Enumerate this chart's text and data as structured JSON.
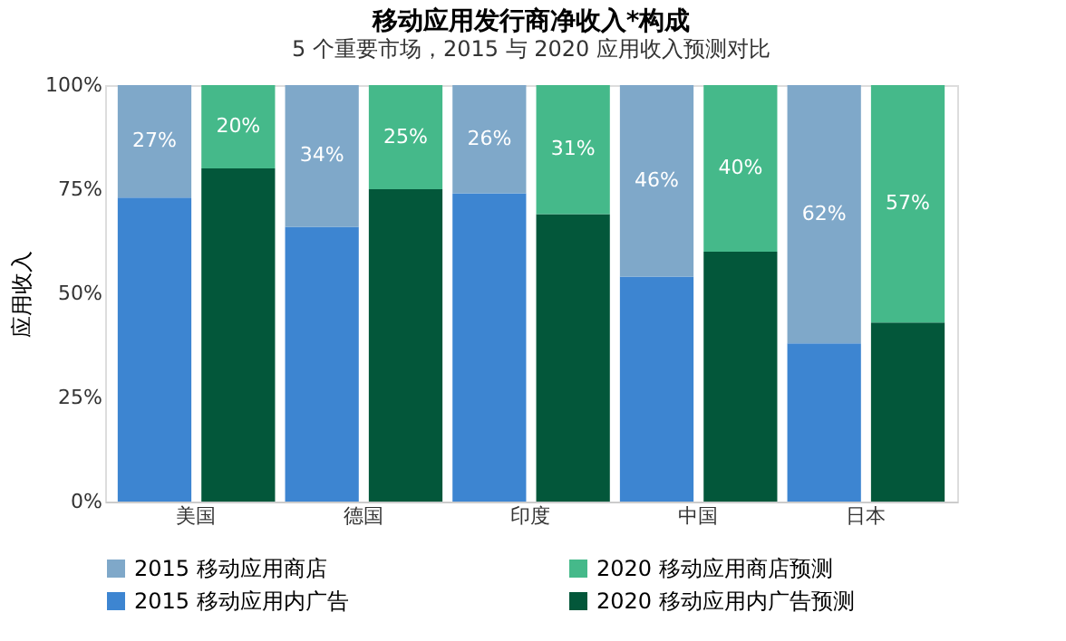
{
  "chart_data": {
    "type": "bar",
    "title": "移动应用发行商净收入*构成",
    "subtitle": "5 个重要市场，2015 与 2020 应用收入预测对比",
    "ylabel": "应用收入",
    "categories": [
      "美国",
      null,
      "德国",
      null,
      "印度",
      null,
      "中国",
      null,
      "日本",
      null
    ],
    "stacked": true,
    "legend": "bottom",
    "grid": false,
    "ylim": [
      0,
      100
    ],
    "yticks": [
      {
        "value": 0,
        "label": "0%"
      },
      {
        "value": 25,
        "label": "25%"
      },
      {
        "value": 50,
        "label": "50%"
      },
      {
        "value": 75,
        "label": "75%"
      },
      {
        "value": 100,
        "label": "100%"
      }
    ],
    "series": [
      {
        "name": "2015 移动应用内广告",
        "color": "#3d85d1",
        "values": [
          73,
          null,
          66,
          null,
          74,
          null,
          54,
          null,
          38,
          null
        ]
      },
      {
        "name": "2015 移动应用商店",
        "color": "#7fa8c9",
        "values": [
          27,
          null,
          34,
          null,
          26,
          null,
          46,
          null,
          62,
          null
        ],
        "value_labels": [
          "27%",
          null,
          "34%",
          null,
          "26%",
          null,
          "46%",
          null,
          "62%",
          null
        ]
      },
      {
        "name": "2020 移动应用内广告预测",
        "color": "#03573a",
        "values": [
          null,
          80,
          null,
          75,
          null,
          69,
          null,
          60,
          null,
          43
        ]
      },
      {
        "name": "2020 移动应用商店预测",
        "color": "#45b98a",
        "values": [
          null,
          20,
          null,
          25,
          null,
          31,
          null,
          40,
          null,
          57
        ],
        "value_labels": [
          null,
          "20%",
          null,
          "25%",
          null,
          "31%",
          null,
          "40%",
          null,
          "57%"
        ]
      }
    ]
  }
}
